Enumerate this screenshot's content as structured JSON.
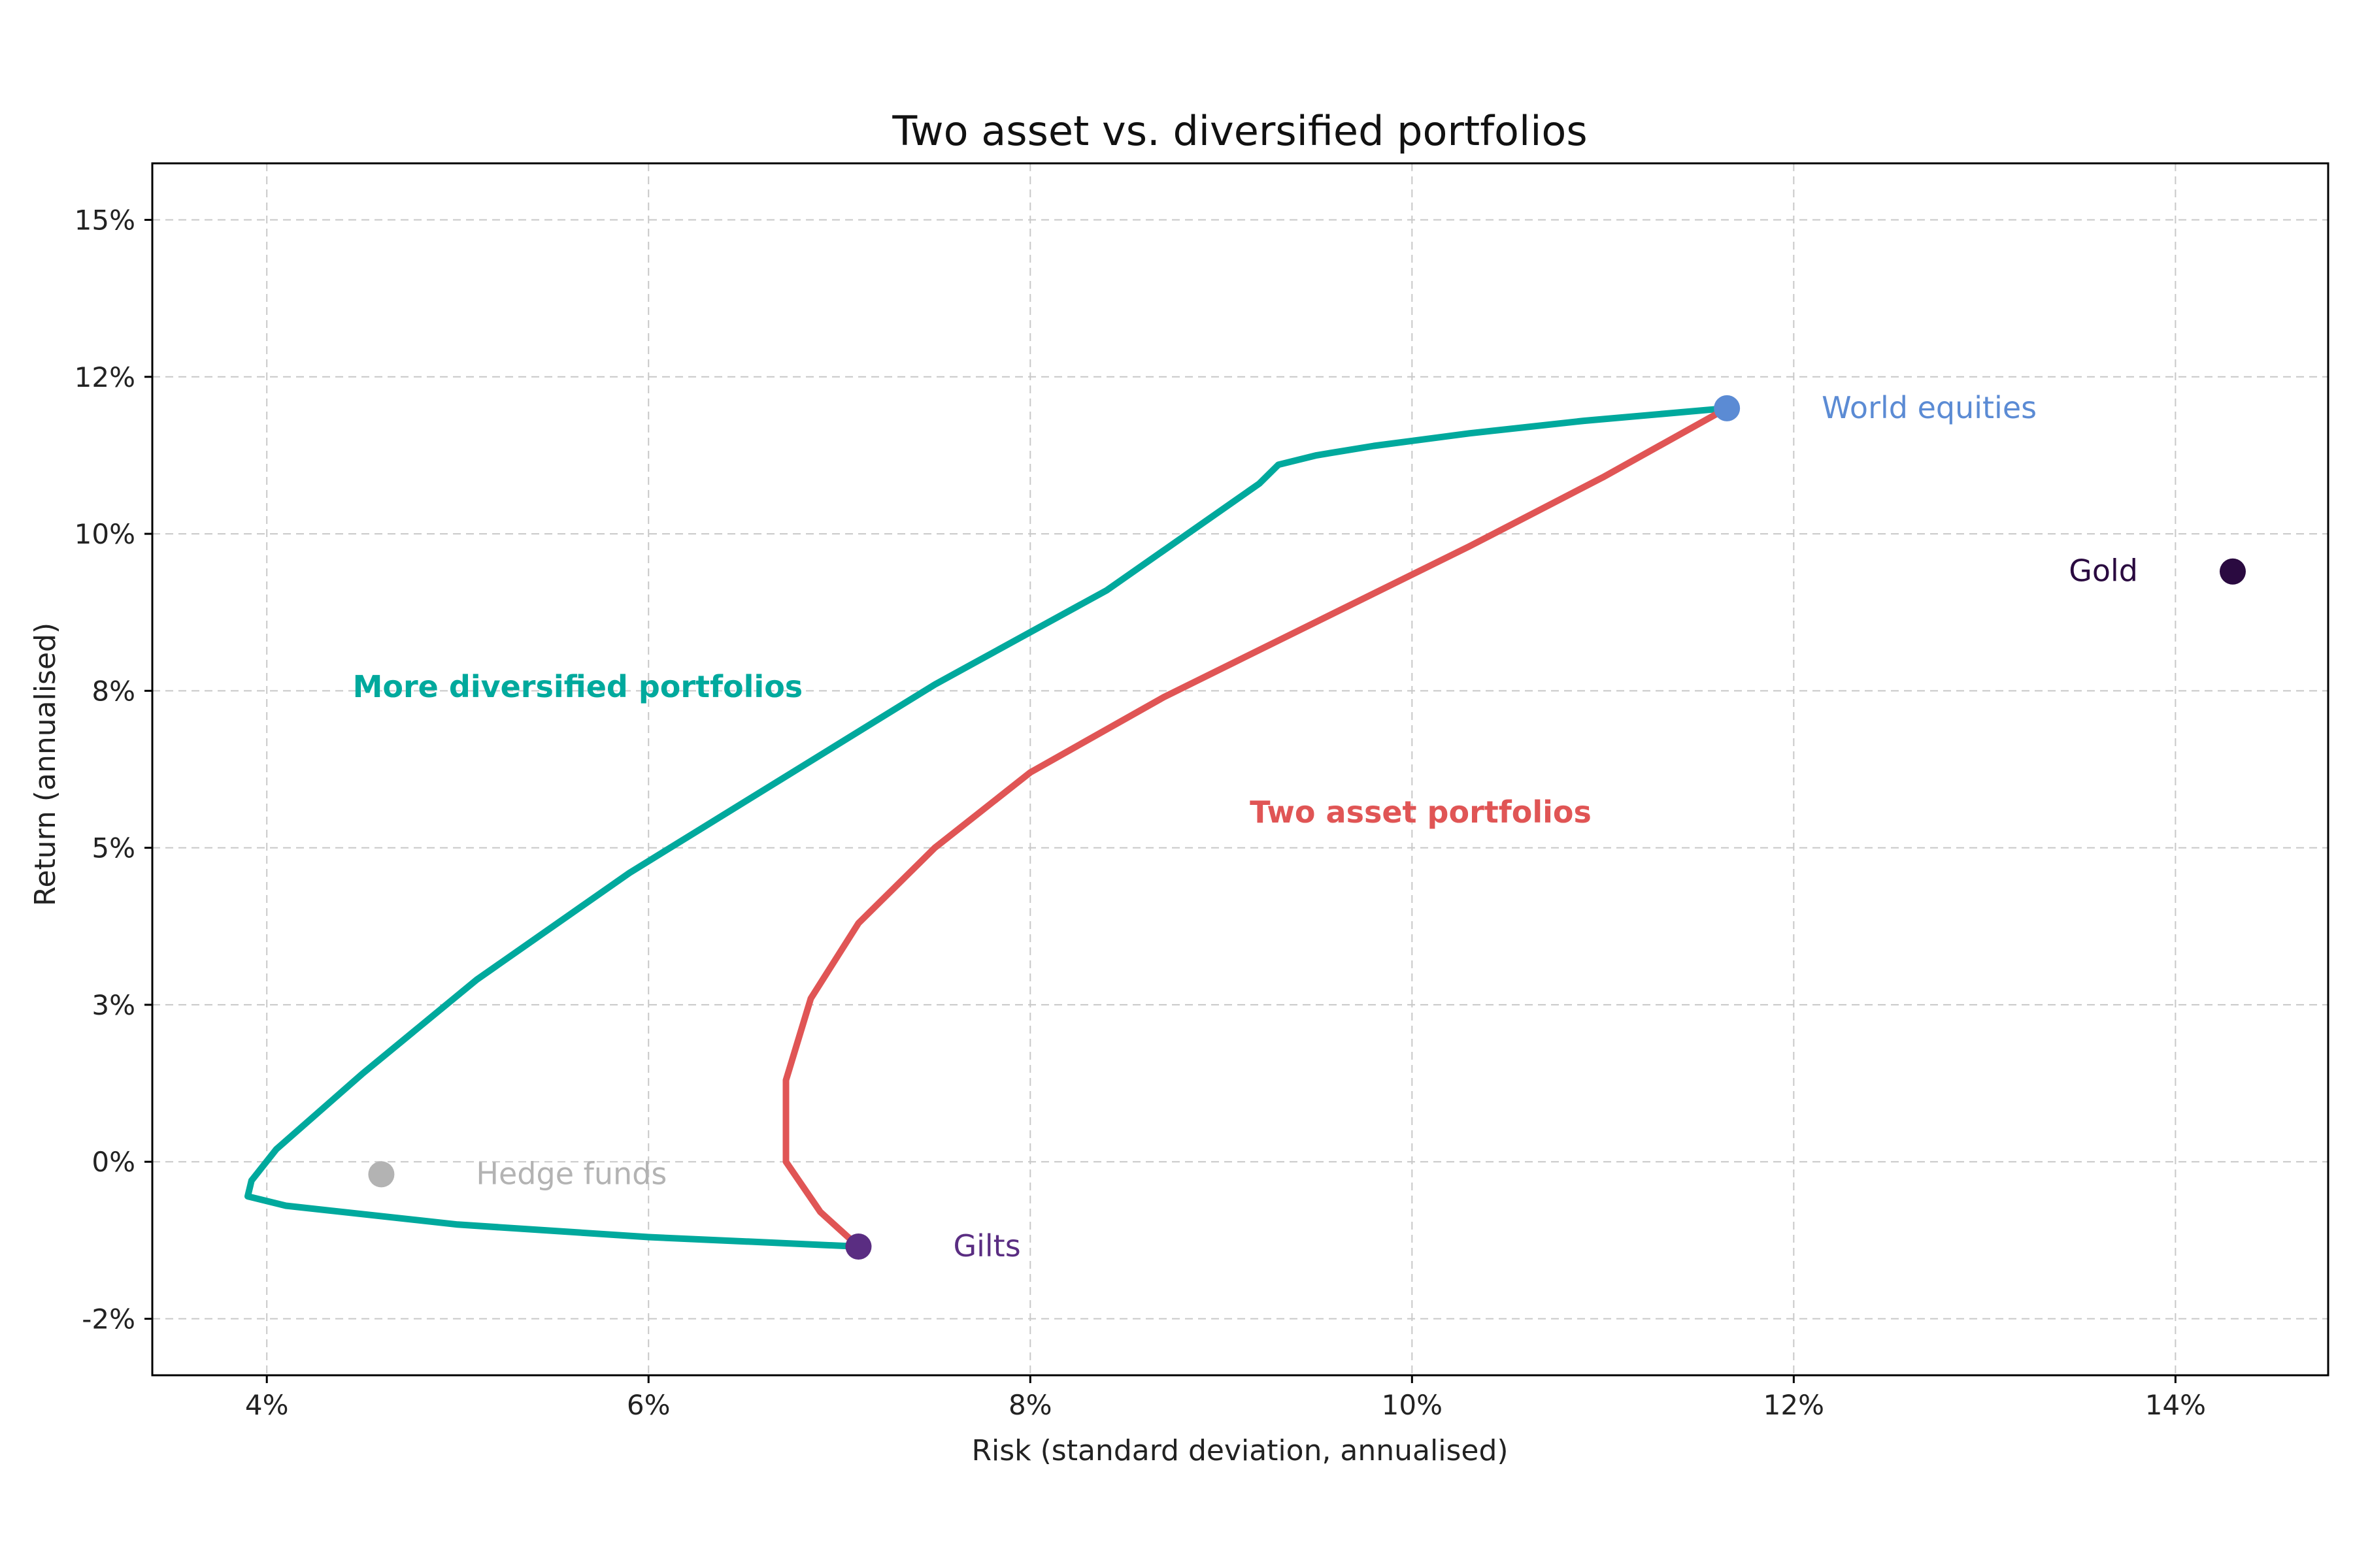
{
  "chart_data": {
    "type": "line",
    "title": "Two asset vs. diversified portfolios",
    "xlabel": "Risk (standard deviation, annualised)",
    "ylabel": "Return (annualised)",
    "xlim": [
      3.4,
      14.8
    ],
    "ylim": [
      -3.4,
      15.9
    ],
    "x_ticks": [
      4,
      6,
      8,
      10,
      12,
      14
    ],
    "x_tick_labels": [
      "4%",
      "6%",
      "8%",
      "10%",
      "12%",
      "14%"
    ],
    "y_ticks": [
      -2.5,
      0,
      2.5,
      5,
      7.5,
      10,
      12.5,
      15
    ],
    "y_tick_labels": [
      "-2%",
      "0%",
      "3%",
      "5%",
      "8%",
      "10%",
      "12%",
      "15%"
    ],
    "grid": true,
    "series": [
      {
        "name": "More diversified portfolios",
        "color": "#00a99d",
        "x": [
          7.1,
          6.0,
          5.0,
          4.1,
          3.9,
          3.92,
          4.05,
          4.5,
          5.1,
          5.9,
          6.7,
          7.5,
          8.4,
          9.2,
          9.3,
          9.5,
          9.8,
          10.3,
          10.9,
          11.65
        ],
        "y": [
          -1.35,
          -1.2,
          -1.0,
          -0.7,
          -0.55,
          -0.3,
          0.2,
          1.4,
          2.9,
          4.6,
          6.1,
          7.6,
          9.1,
          10.8,
          11.1,
          11.25,
          11.4,
          11.6,
          11.8,
          12.0
        ]
      },
      {
        "name": "Two asset portfolios",
        "color": "#e05555",
        "x": [
          7.1,
          6.9,
          6.72,
          6.72,
          6.85,
          7.1,
          7.5,
          8.0,
          8.7,
          9.5,
          10.3,
          11.0,
          11.65
        ],
        "y": [
          -1.35,
          -0.8,
          0.0,
          1.3,
          2.6,
          3.8,
          5.0,
          6.2,
          7.4,
          8.6,
          9.8,
          10.9,
          12.0
        ]
      }
    ],
    "points": [
      {
        "name": "World equities",
        "x": 11.65,
        "y": 12.0,
        "color": "#5b8bd4"
      },
      {
        "name": "Gold",
        "x": 14.3,
        "y": 9.4,
        "color": "#2a0a40"
      },
      {
        "name": "Hedge funds",
        "x": 4.6,
        "y": -0.2,
        "color": "#b3b3b3"
      },
      {
        "name": "Gilts",
        "x": 7.1,
        "y": -1.35,
        "color": "#5a2d82"
      }
    ],
    "annotations": [
      {
        "text": "More diversified portfolios",
        "color": "#00a99d",
        "x": 4.45,
        "y": 7.4
      },
      {
        "text": "Two asset portfolios",
        "color": "#e05555",
        "x": 9.15,
        "y": 5.4
      }
    ]
  }
}
